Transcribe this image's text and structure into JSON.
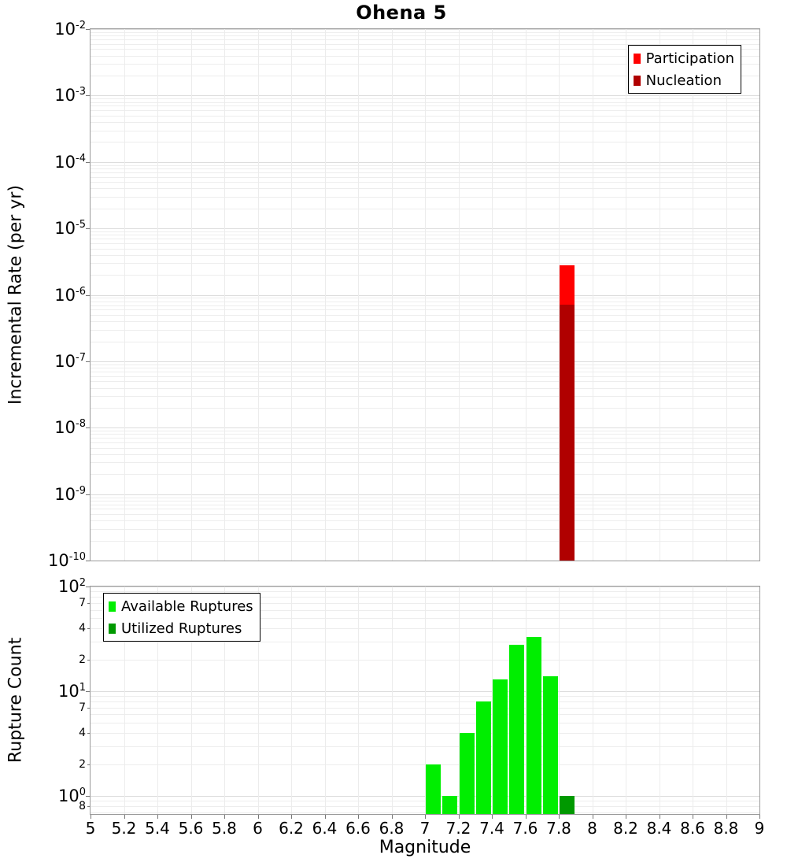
{
  "chart_data": {
    "type": "bar",
    "title": "Ohena 5",
    "xlabel": "Magnitude",
    "xlim": [
      5,
      9
    ],
    "x_tick_values": [
      5,
      5.2,
      5.4,
      5.6,
      5.8,
      6,
      6.2,
      6.4,
      6.6,
      6.8,
      7,
      7.2,
      7.4,
      7.6,
      7.8,
      8,
      8.2,
      8.4,
      8.6,
      8.8,
      9
    ],
    "x_tick_labels": [
      "5",
      "5.2",
      "5.4",
      "5.6",
      "5.8",
      "6",
      "6.2",
      "6.4",
      "6.6",
      "6.8",
      "7",
      "7.2",
      "7.4",
      "7.6",
      "7.8",
      "8",
      "8.2",
      "8.4",
      "8.6",
      "8.8",
      "9"
    ],
    "grid": true,
    "panels": [
      {
        "id": "rate",
        "ylabel": "Incremental Rate (per yr)",
        "yscale": "log",
        "ylim": [
          1e-10,
          0.01
        ],
        "bin_width": 0.1,
        "y_ticks": [
          {
            "base": "10",
            "exp": "-2",
            "value": 0.01
          },
          {
            "base": "10",
            "exp": "-3",
            "value": 0.001
          },
          {
            "base": "10",
            "exp": "-4",
            "value": 0.0001
          },
          {
            "base": "10",
            "exp": "-5",
            "value": 1e-05
          },
          {
            "base": "10",
            "exp": "-6",
            "value": 1e-06
          },
          {
            "base": "10",
            "exp": "-7",
            "value": 1e-07
          },
          {
            "base": "10",
            "exp": "-8",
            "value": 1e-08
          },
          {
            "base": "10",
            "exp": "-9",
            "value": 1e-09
          },
          {
            "base": "10",
            "exp": "-10",
            "value": 1e-10
          }
        ],
        "legend": {
          "position": "top-right",
          "items": [
            {
              "label": "Participation",
              "color": "#ff0000"
            },
            {
              "label": "Nucleation",
              "color": "#b00000"
            }
          ]
        },
        "series": [
          {
            "name": "Participation",
            "color": "#ff0000",
            "x": [
              7.85
            ],
            "values": [
              2.8e-06
            ]
          },
          {
            "name": "Nucleation",
            "color": "#b00000",
            "x": [
              7.85
            ],
            "values": [
              7.2e-07
            ]
          }
        ]
      },
      {
        "id": "count",
        "ylabel": "Rupture Count",
        "yscale": "log",
        "ylim": [
          0.67,
          100
        ],
        "bin_width": 0.1,
        "y_ticks": [
          {
            "base": "10",
            "exp": "2",
            "value": 100
          },
          {
            "text": "7",
            "value": 70
          },
          {
            "text": "4",
            "value": 40
          },
          {
            "text": "2",
            "value": 20
          },
          {
            "base": "10",
            "exp": "1",
            "value": 10
          },
          {
            "text": "7",
            "value": 7
          },
          {
            "text": "4",
            "value": 4
          },
          {
            "text": "2",
            "value": 2
          },
          {
            "base": "10",
            "exp": "0",
            "value": 1
          },
          {
            "text": "8",
            "value": 0.8
          }
        ],
        "legend": {
          "position": "top-left",
          "items": [
            {
              "label": "Available Ruptures",
              "color": "#00ee00"
            },
            {
              "label": "Utilized Ruptures",
              "color": "#009900"
            }
          ]
        },
        "series": [
          {
            "name": "Available Ruptures",
            "color": "#00ee00",
            "x": [
              7.05,
              7.15,
              7.25,
              7.35,
              7.45,
              7.55,
              7.65,
              7.75
            ],
            "values": [
              2,
              1,
              4,
              8,
              13,
              28,
              33,
              14
            ]
          },
          {
            "name": "Utilized Ruptures",
            "color": "#009900",
            "x": [
              7.85
            ],
            "values": [
              1
            ]
          }
        ]
      }
    ]
  }
}
